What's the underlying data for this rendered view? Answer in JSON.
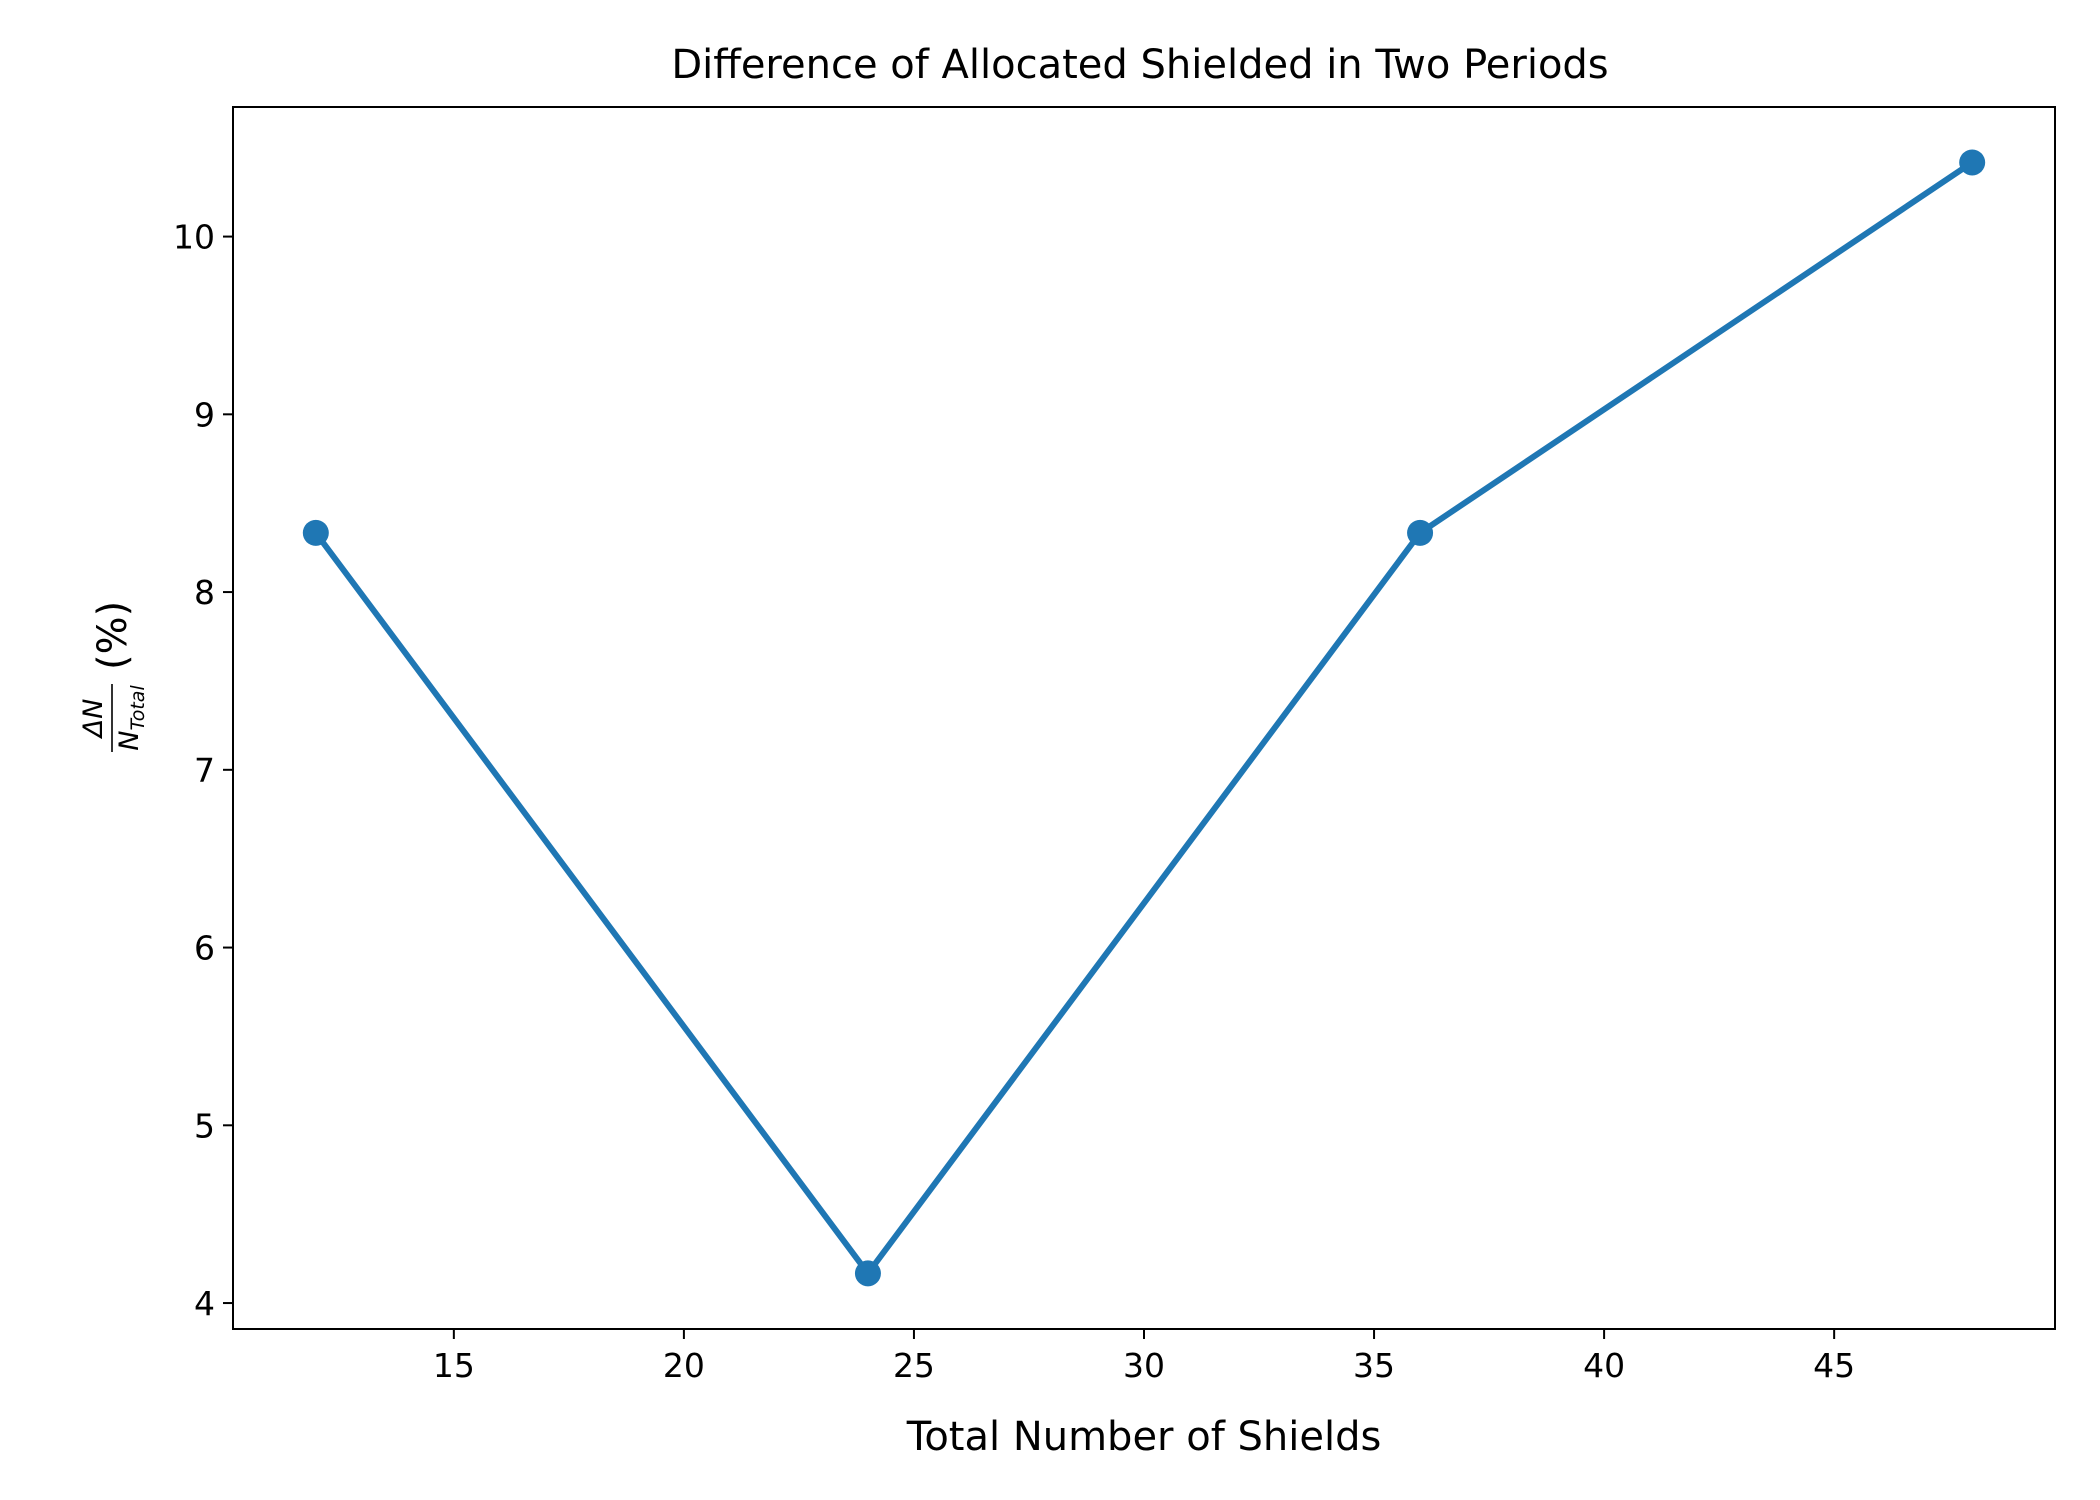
{
  "chart_data": {
    "type": "line",
    "title": "Difference of Allocated Shielded in Two Periods",
    "xlabel": "Total Number of Shields",
    "ylabel": {
      "numerator": "ΔN",
      "denominator_base": "N",
      "denominator_sub": "Total",
      "suffix": "(%)"
    },
    "x": [
      12,
      24,
      36,
      48
    ],
    "series": [
      {
        "values": [
          8.333,
          4.167,
          8.333,
          10.417
        ],
        "color": "#1f77b4"
      }
    ],
    "xlim": [
      10.2,
      49.8
    ],
    "ylim": [
      3.854,
      10.729
    ],
    "xticks": [
      "15",
      "20",
      "25",
      "30",
      "35",
      "40",
      "45"
    ],
    "xtick_values": [
      15,
      20,
      25,
      30,
      35,
      40,
      45
    ],
    "yticks": [
      "4",
      "5",
      "6",
      "7",
      "8",
      "9",
      "10"
    ],
    "ytick_values": [
      4,
      5,
      6,
      7,
      8,
      9,
      10
    ],
    "grid": false,
    "legend": false
  }
}
